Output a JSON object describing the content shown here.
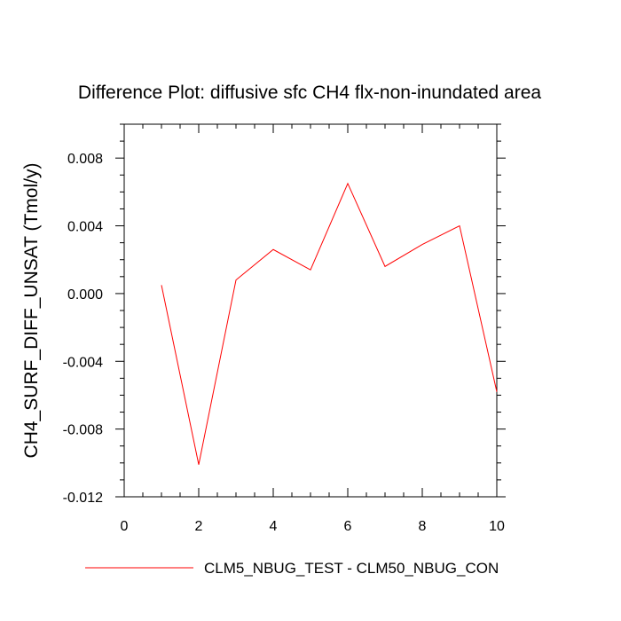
{
  "chart_data": {
    "type": "line",
    "title": "Difference Plot: diffusive sfc CH4 flx-non-inundated area",
    "xlabel": "",
    "ylabel": "CH4_SURF_DIFF_UNSAT  (Tmol/y)",
    "xlim": [
      0,
      10
    ],
    "ylim": [
      -0.012,
      0.01
    ],
    "x_ticks": [
      0,
      2,
      4,
      6,
      8,
      10
    ],
    "x_tick_labels": [
      "0",
      "2",
      "4",
      "6",
      "8",
      "10"
    ],
    "y_ticks": [
      -0.012,
      -0.008,
      -0.004,
      0.0,
      0.004,
      0.008
    ],
    "y_tick_labels": [
      "-0.012",
      "-0.008",
      "-0.004",
      "0.000",
      "0.004",
      "0.008"
    ],
    "grid": false,
    "legend_position": "bottom",
    "series": [
      {
        "name": "CLM5_NBUG_TEST - CLM50_NBUG_CON",
        "color": "#ff0000",
        "x": [
          1,
          2,
          3,
          4,
          5,
          6,
          7,
          8,
          9,
          10
        ],
        "y": [
          0.0005,
          -0.0101,
          0.0008,
          0.0026,
          0.0014,
          0.0065,
          0.0016,
          0.0029,
          0.004,
          -0.0058
        ]
      }
    ]
  }
}
